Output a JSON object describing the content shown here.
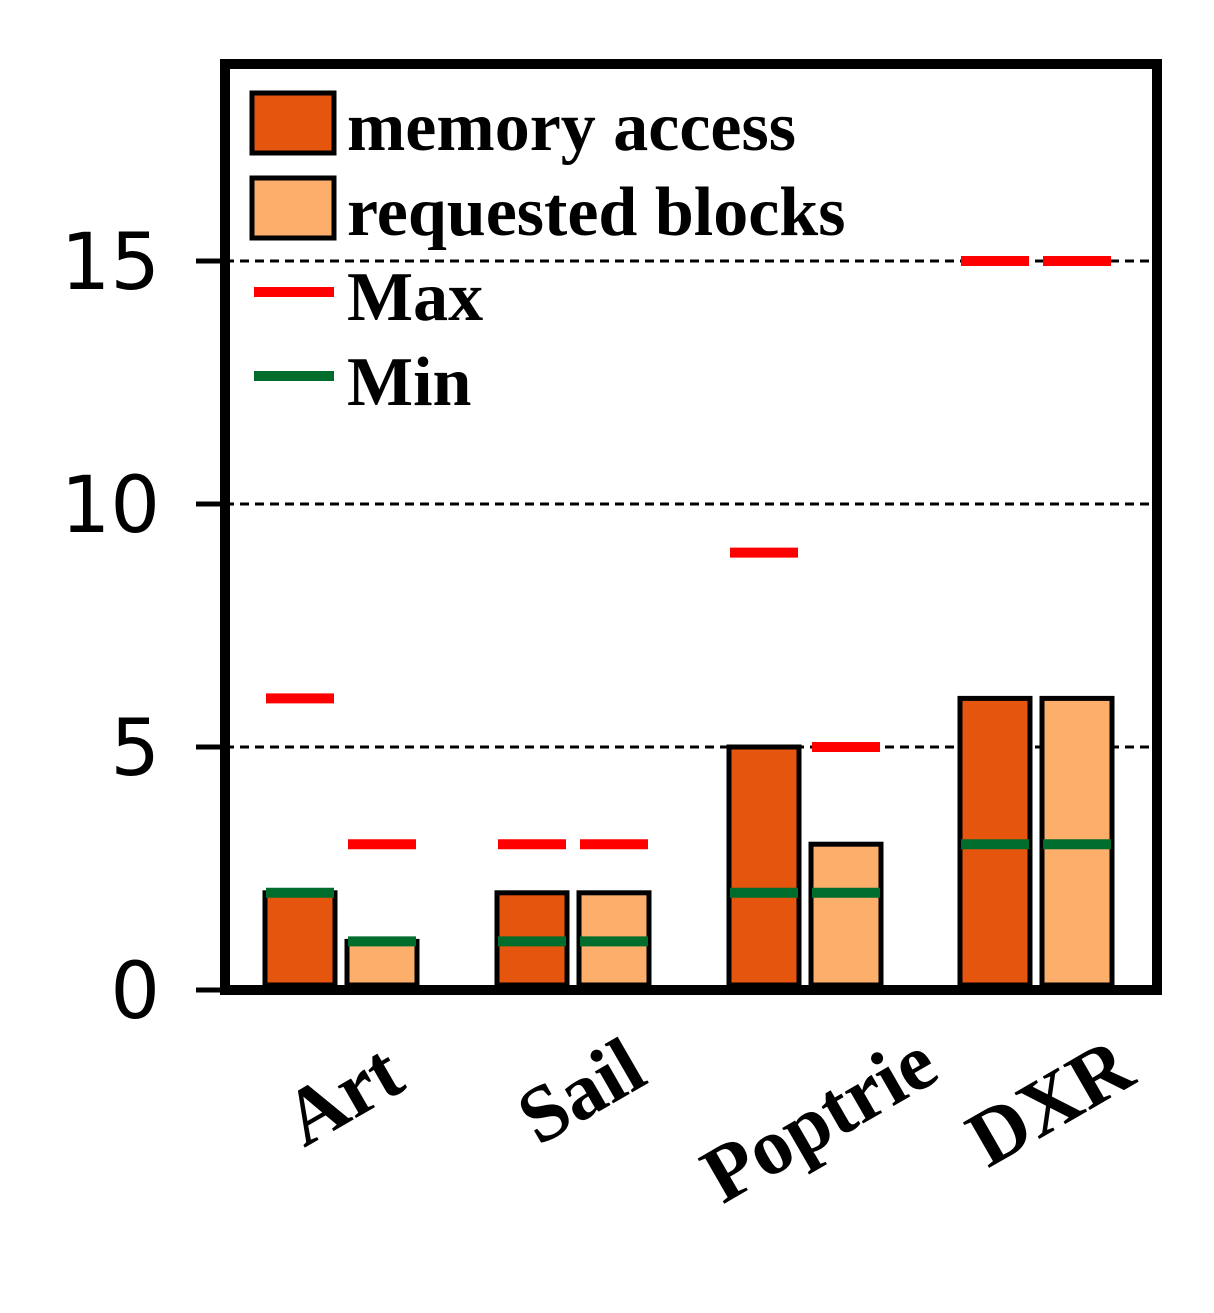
{
  "chart_data": {
    "type": "bar",
    "categories": [
      "Art",
      "Sail",
      "Poptrie",
      "DXR"
    ],
    "series": [
      {
        "name": "memory access",
        "values": [
          2,
          2,
          5,
          6
        ],
        "max": [
          6,
          3,
          9,
          15
        ],
        "min": [
          2,
          1,
          2,
          3
        ],
        "color": "#e6550d"
      },
      {
        "name": "requested blocks",
        "values": [
          1,
          2,
          3,
          6
        ],
        "max": [
          3,
          3,
          5,
          15
        ],
        "min": [
          1,
          1,
          2,
          3
        ],
        "color": "#fdae6b"
      }
    ],
    "markers": {
      "max": {
        "name": "Max",
        "color": "#ff0000"
      },
      "min": {
        "name": "Min",
        "color": "#006d2c"
      }
    },
    "yticks": [
      "0",
      "5",
      "10",
      "15"
    ],
    "ytick_values": [
      0,
      5,
      10,
      15
    ],
    "ylim": [
      0,
      19
    ],
    "grid": "dashed horizontal at 5, 10, 15",
    "legend_position": "top-left"
  }
}
